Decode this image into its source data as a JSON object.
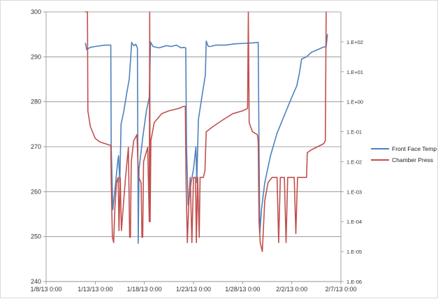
{
  "chart_data": {
    "type": "line",
    "title": "",
    "xlabel": "",
    "ylabel": "",
    "x_axis": {
      "range": [
        "1/8/13 0:00",
        "2/7/13 0:00"
      ],
      "tick_labels": [
        "1/8/13 0:00",
        "1/13/13 0:00",
        "1/18/13 0:00",
        "1/23/13 0:00",
        "1/28/13 0:00",
        "2/2/13 0:00",
        "2/7/13 0:00"
      ],
      "tick_days": [
        0,
        5,
        10,
        15,
        20,
        25,
        30
      ]
    },
    "y_left": {
      "range": [
        240,
        300
      ],
      "tick_values": [
        240,
        250,
        260,
        270,
        280,
        290,
        300
      ],
      "tick_labels": [
        "240",
        "250",
        "260",
        "270",
        "280",
        "290",
        "300"
      ],
      "grid": true
    },
    "y_right": {
      "scale": "log",
      "range": [
        1e-06,
        1000
      ],
      "tick_values": [
        1e-06,
        1e-05,
        0.0001,
        0.001,
        0.01,
        0.1,
        1,
        10,
        100
      ],
      "tick_labels": [
        "1.E-06",
        "1.E-05",
        "1.E-04",
        "1.E-03",
        "1.E-02",
        "1.E-01",
        "1.E+00",
        "1.E+01",
        "1.E+02"
      ]
    },
    "legend_position": "right",
    "series": [
      {
        "name": "Front Face Temp",
        "color": "#4f81bd",
        "axis": "left",
        "points": [
          [
            "1/12/13 0:00",
            293.0
          ],
          [
            "1/12/13 1:00",
            292.6
          ],
          [
            "1/12/13 3:00",
            291.6
          ],
          [
            "1/12/13 12:00",
            292.1
          ],
          [
            "1/13/13 0:00",
            292.3
          ],
          [
            "1/14/13 0:00",
            292.6
          ],
          [
            "1/14/13 14:00",
            292.6
          ],
          [
            "1/14/13 15:00",
            270.0
          ],
          [
            "1/14/13 19:00",
            256.0
          ],
          [
            "1/15/13 2:00",
            262.0
          ],
          [
            "1/15/13 6:00",
            266.0
          ],
          [
            "1/15/13 9:00",
            268.0
          ],
          [
            "1/15/13 12:00",
            262.0
          ],
          [
            "1/15/13 15:00",
            275.0
          ],
          [
            "1/15/13 22:00",
            278.0
          ],
          [
            "1/16/13 5:00",
            282.0
          ],
          [
            "1/16/13 11:00",
            285.0
          ],
          [
            "1/16/13 17:00",
            293.2
          ],
          [
            "1/16/13 22:00",
            292.5
          ],
          [
            "1/17/13 3:00",
            292.8
          ],
          [
            "1/17/13 7:00",
            292.0
          ],
          [
            "1/17/13 9:00",
            248.5
          ],
          [
            "1/17/13 11:00",
            265.0
          ],
          [
            "1/17/13 20:00",
            272.0
          ],
          [
            "1/18/13 5:00",
            278.0
          ],
          [
            "1/18/13 12:00",
            281.0
          ],
          [
            "1/18/13 15:00",
            293.3
          ],
          [
            "1/18/13 21:00",
            292.3
          ],
          [
            "1/19/13 12:00",
            292.0
          ],
          [
            "1/20/13 6:00",
            292.5
          ],
          [
            "1/20/13 18:00",
            292.3
          ],
          [
            "1/21/13 6:00",
            292.6
          ],
          [
            "1/21/13 18:00",
            292.0
          ],
          [
            "1/22/13 0:00",
            292.1
          ],
          [
            "1/22/13 5:00",
            292.0
          ],
          [
            "1/22/13 7:00",
            270.0
          ],
          [
            "1/22/13 11:00",
            257.0
          ],
          [
            "1/22/13 18:00",
            262.0
          ],
          [
            "1/23/13 0:00",
            265.0
          ],
          [
            "1/23/13 6:00",
            270.0
          ],
          [
            "1/23/13 8:00",
            262.0
          ],
          [
            "1/23/13 12:00",
            276.0
          ],
          [
            "1/23/13 22:00",
            282.0
          ],
          [
            "1/24/13 5:00",
            286.0
          ],
          [
            "1/24/13 7:00",
            293.5
          ],
          [
            "1/24/13 12:00",
            292.3
          ],
          [
            "1/24/13 18:00",
            292.3
          ],
          [
            "1/25/13 6:00",
            292.6
          ],
          [
            "1/26/13 6:00",
            292.6
          ],
          [
            "1/27/13 6:00",
            292.9
          ],
          [
            "1/28/13 6:00",
            293.0
          ],
          [
            "1/29/13 0:00",
            293.1
          ],
          [
            "1/29/13 14:00",
            293.2
          ],
          [
            "1/29/13 16:00",
            270.0
          ],
          [
            "1/29/13 18:00",
            250.5
          ],
          [
            "1/29/13 22:00",
            256.0
          ],
          [
            "1/30/13 6:00",
            262.0
          ],
          [
            "1/30/13 20:00",
            268.0
          ],
          [
            "1/31/13 12:00",
            273.0
          ],
          [
            "2/1/13 6:00",
            277.0
          ],
          [
            "2/2/13 0:00",
            281.0
          ],
          [
            "2/2/13 12:00",
            283.5
          ],
          [
            "2/2/13 18:00",
            286.0
          ],
          [
            "2/3/13 0:00",
            289.5
          ],
          [
            "2/3/13 12:00",
            290.0
          ],
          [
            "2/4/13 0:00",
            291.0
          ],
          [
            "2/4/13 18:00",
            291.7
          ],
          [
            "2/5/13 6:00",
            292.2
          ],
          [
            "2/5/13 12:00",
            292.2
          ],
          [
            "2/5/13 15:00",
            295.0
          ]
        ]
      },
      {
        "name": "Chamber Press",
        "color": "#c0504d",
        "axis": "right",
        "points": [
          [
            "1/12/13 0:00",
            1000
          ],
          [
            "1/12/13 5:00",
            1000
          ],
          [
            "1/12/13 6:00",
            0.5
          ],
          [
            "1/12/13 12:00",
            0.15
          ],
          [
            "1/13/13 0:00",
            0.06
          ],
          [
            "1/13/13 12:00",
            0.045
          ],
          [
            "1/14/13 0:00",
            0.04
          ],
          [
            "1/14/13 14:00",
            0.035
          ],
          [
            "1/14/13 15:00",
            0.002
          ],
          [
            "1/14/13 18:00",
            3e-05
          ],
          [
            "1/14/13 21:00",
            2e-05
          ],
          [
            "1/15/13 0:00",
            0.0003
          ],
          [
            "1/15/13 4:00",
            0.002
          ],
          [
            "1/15/13 8:00",
            0.003
          ],
          [
            "1/15/13 10:00",
            5e-05
          ],
          [
            "1/15/13 13:00",
            0.003
          ],
          [
            "1/15/13 16:00",
            5e-05
          ],
          [
            "1/16/13 2:00",
            0.003
          ],
          [
            "1/16/13 9:00",
            0.03
          ],
          [
            "1/16/13 12:00",
            3e-05
          ],
          [
            "1/16/13 14:00",
            3e-05
          ],
          [
            "1/16/13 16:00",
            0.01
          ],
          [
            "1/16/13 22:00",
            0.05
          ],
          [
            "1/17/13 6:00",
            0.08
          ],
          [
            "1/17/13 8:00",
            0.01
          ],
          [
            "1/17/13 10:00",
            0.003
          ],
          [
            "1/17/13 16:00",
            0.002
          ],
          [
            "1/17/13 18:00",
            3e-05
          ],
          [
            "1/17/13 20:00",
            3e-05
          ],
          [
            "1/17/13 22:00",
            0.01
          ],
          [
            "1/18/13 8:00",
            0.03
          ],
          [
            "1/18/13 12:00",
            0.0001
          ],
          [
            "1/18/13 13:00",
            1000
          ],
          [
            "1/18/13 14:00",
            0.0001
          ],
          [
            "1/18/13 16:00",
            0.05
          ],
          [
            "1/19/13 0:00",
            0.2
          ],
          [
            "1/19/13 18:00",
            0.4
          ],
          [
            "1/20/13 12:00",
            0.5
          ],
          [
            "1/21/13 12:00",
            0.6
          ],
          [
            "1/22/13 0:00",
            0.7
          ],
          [
            "1/22/13 4:00",
            0.7
          ],
          [
            "1/22/13 6:00",
            0.002
          ],
          [
            "1/22/13 9:00",
            2e-05
          ],
          [
            "1/22/13 12:00",
            0.0003
          ],
          [
            "1/22/13 16:00",
            0.003
          ],
          [
            "1/22/13 20:00",
            2e-05
          ],
          [
            "1/23/13 0:00",
            0.003
          ],
          [
            "1/23/13 5:00",
            0.003
          ],
          [
            "1/23/13 7:00",
            2e-05
          ],
          [
            "1/23/13 10:00",
            0.003
          ],
          [
            "1/23/13 14:00",
            3e-05
          ],
          [
            "1/23/13 16:00",
            0.003
          ],
          [
            "1/24/13 0:00",
            0.003
          ],
          [
            "1/24/13 4:00",
            0.005
          ],
          [
            "1/24/13 7:00",
            0.1
          ],
          [
            "1/25/13 0:00",
            0.15
          ],
          [
            "1/26/13 0:00",
            0.25
          ],
          [
            "1/27/13 0:00",
            0.4
          ],
          [
            "1/28/13 0:00",
            0.5
          ],
          [
            "1/28/13 12:00",
            0.6
          ],
          [
            "1/28/13 14:00",
            1000
          ],
          [
            "1/28/13 16:00",
            0.2
          ],
          [
            "1/29/13 0:00",
            0.1
          ],
          [
            "1/29/13 12:00",
            0.08
          ],
          [
            "1/29/13 14:00",
            0.05
          ],
          [
            "1/29/13 16:00",
            0.0001
          ],
          [
            "1/29/13 19:00",
            2e-05
          ],
          [
            "1/30/13 0:00",
            1e-05
          ],
          [
            "1/30/13 6:00",
            0.0005
          ],
          [
            "1/30/13 14:00",
            0.002
          ],
          [
            "1/31/13 0:00",
            0.003
          ],
          [
            "1/31/13 12:00",
            0.003
          ],
          [
            "1/31/13 16:00",
            2e-05
          ],
          [
            "1/31/13 20:00",
            0.003
          ],
          [
            "2/1/13 6:00",
            0.003
          ],
          [
            "2/1/13 10:00",
            2e-05
          ],
          [
            "2/1/13 14:00",
            0.003
          ],
          [
            "2/2/13 6:00",
            0.003
          ],
          [
            "2/2/13 10:00",
            4e-05
          ],
          [
            "2/2/13 14:00",
            0.003
          ],
          [
            "2/3/13 0:00",
            0.003
          ],
          [
            "2/3/13 12:00",
            0.003
          ],
          [
            "2/3/13 14:00",
            0.02
          ],
          [
            "2/4/13 0:00",
            0.025
          ],
          [
            "2/4/13 12:00",
            0.03
          ],
          [
            "2/5/13 6:00",
            0.04
          ],
          [
            "2/5/13 10:00",
            0.05
          ],
          [
            "2/5/13 12:00",
            1000
          ]
        ]
      }
    ]
  }
}
